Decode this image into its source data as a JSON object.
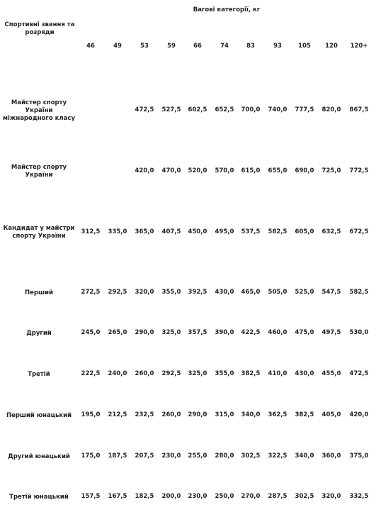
{
  "header": {
    "title": "Вагові категорії, кг",
    "row_header": "Спортивні звання та розряди"
  },
  "weights": [
    "46",
    "49",
    "53",
    "59",
    "66",
    "74",
    "83",
    "93",
    "105",
    "120",
    "120+"
  ],
  "rows": [
    {
      "label": "Майстер спорту України міжнародного класу",
      "values": [
        "",
        "",
        "472,5",
        "527,5",
        "602,5",
        "652,5",
        "700,0",
        "740,0",
        "777,5",
        "820,0",
        "867,5"
      ]
    },
    {
      "label": "Майстер спорту України",
      "values": [
        "",
        "",
        "420,0",
        "470,0",
        "520,0",
        "570,0",
        "615,0",
        "655,0",
        "690,0",
        "725,0",
        "772,5"
      ]
    },
    {
      "label": "Кандидат у майстри спорту України",
      "values": [
        "312,5",
        "335,0",
        "365,0",
        "407,5",
        "450,0",
        "495,0",
        "537,5",
        "582,5",
        "605,0",
        "632,5",
        "672,5"
      ]
    },
    {
      "label": "Перший",
      "values": [
        "272,5",
        "292,5",
        "320,0",
        "355,0",
        "392,5",
        "430,0",
        "465,0",
        "505,0",
        "525,0",
        "547,5",
        "582,5"
      ]
    },
    {
      "label": "Другий",
      "values": [
        "245,0",
        "265,0",
        "290,0",
        "325,0",
        "357,5",
        "390,0",
        "422,5",
        "460,0",
        "475,0",
        "497,5",
        "530,0"
      ]
    },
    {
      "label": "Третій",
      "values": [
        "222,5",
        "240,0",
        "260,0",
        "292,5",
        "325,0",
        "355,0",
        "382,5",
        "410,0",
        "430,0",
        "455,0",
        "472,5"
      ]
    },
    {
      "label": "Перший юнацький",
      "values": [
        "195,0",
        "212,5",
        "232,5",
        "260,0",
        "290,0",
        "315,0",
        "340,0",
        "362,5",
        "382,5",
        "405,0",
        "420,0"
      ]
    },
    {
      "label": "Другий юнацький",
      "values": [
        "175,0",
        "187,5",
        "207,5",
        "230,0",
        "255,0",
        "280,0",
        "302,5",
        "322,5",
        "340,0",
        "360,0",
        "375,0"
      ]
    },
    {
      "label": "Третій юнацький",
      "values": [
        "157,5",
        "167,5",
        "182,5",
        "200,0",
        "230,0",
        "250,0",
        "270,0",
        "287,5",
        "302,5",
        "320,0",
        "332,5"
      ]
    }
  ]
}
